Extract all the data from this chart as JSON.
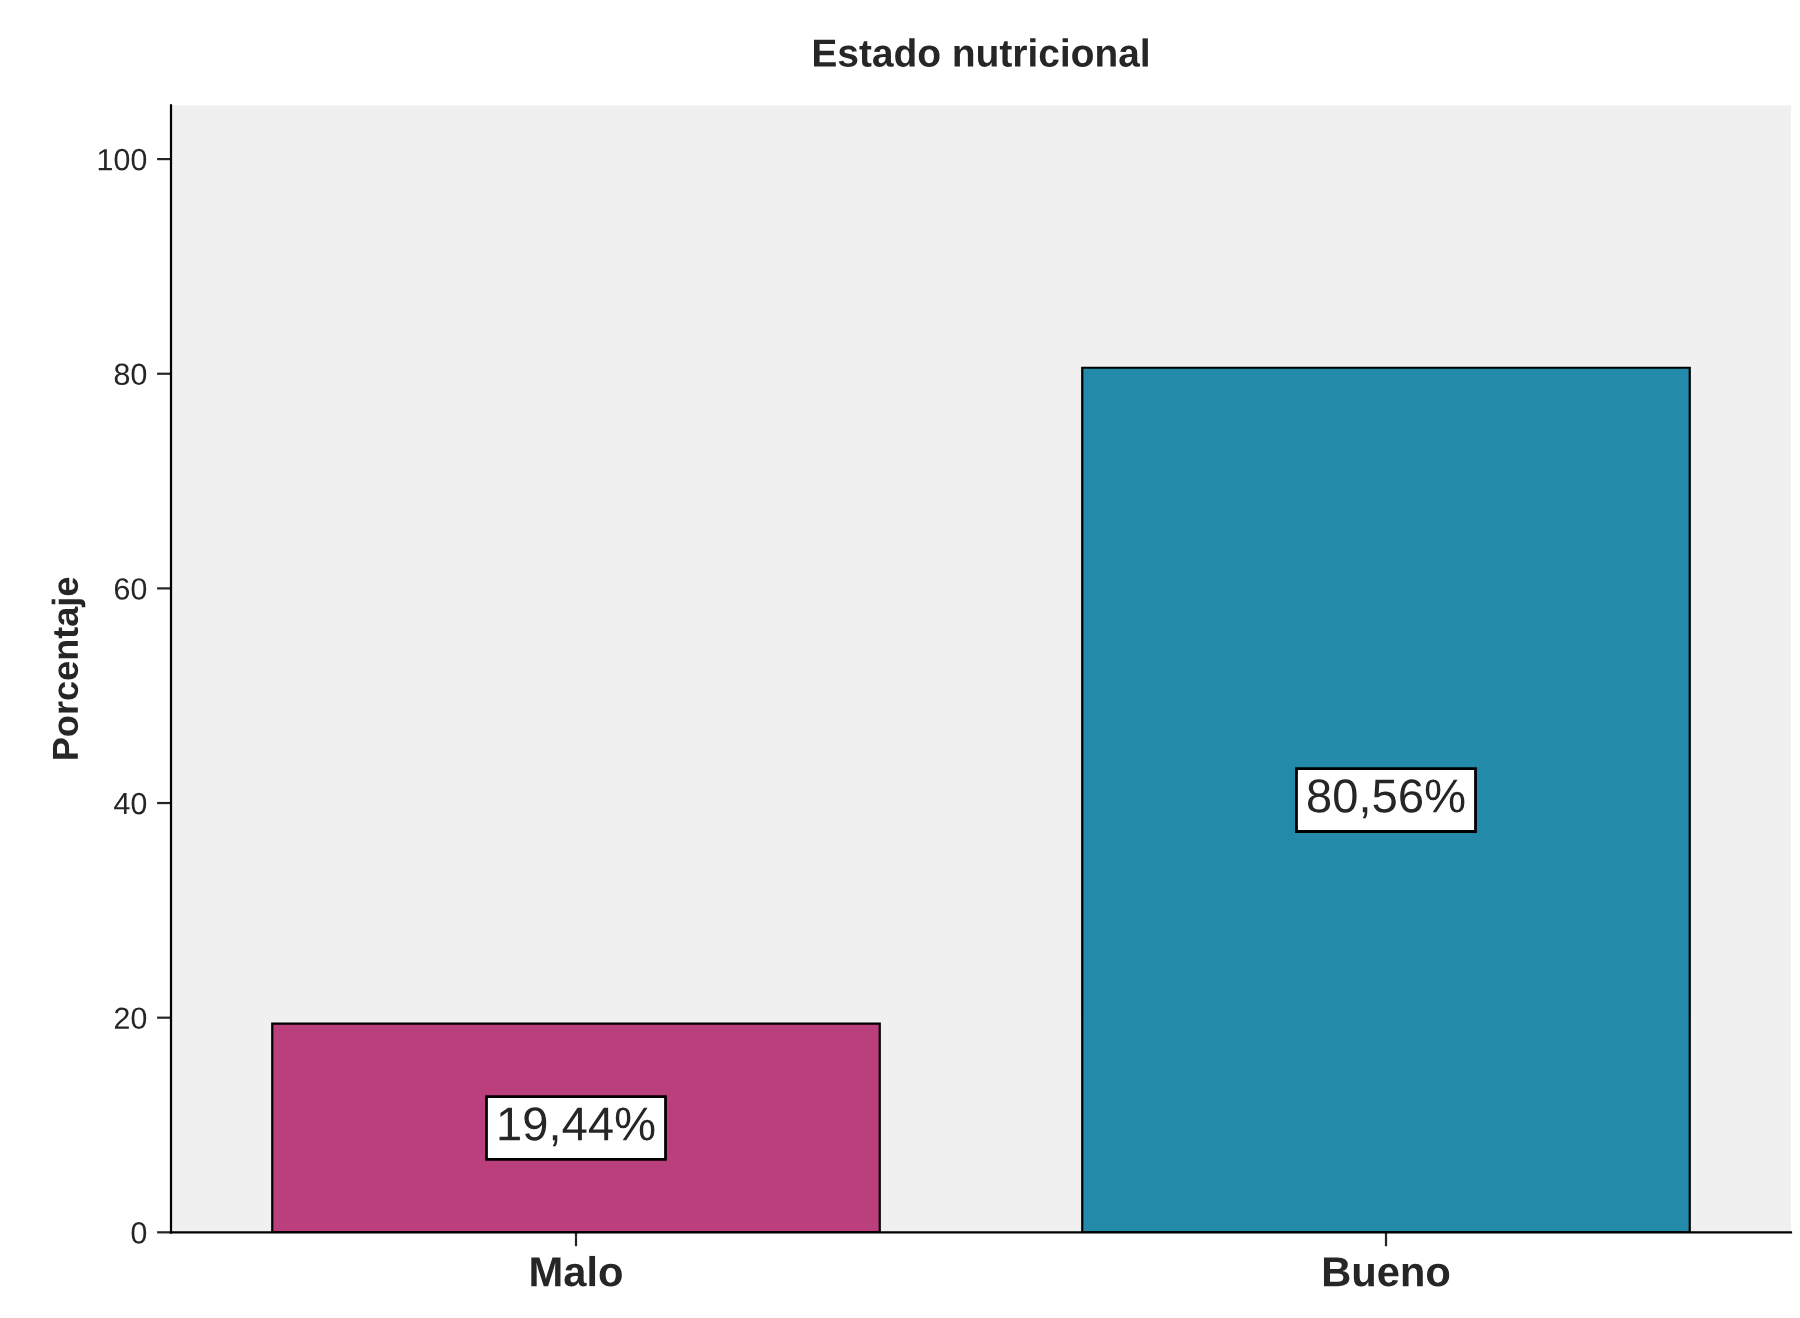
{
  "chart_data": {
    "type": "bar",
    "title": "Estado nutricional",
    "ylabel": "Porcentaje",
    "categories": [
      "Malo",
      "Bueno"
    ],
    "values": [
      19.44,
      80.56
    ],
    "colors": [
      "#bc3f7d",
      "#238aaa"
    ],
    "value_labels": [
      "19,44%",
      "80,56%"
    ],
    "ylim": [
      0,
      105
    ],
    "yticks": [
      0,
      20,
      40,
      60,
      80,
      100
    ],
    "grid": false,
    "legend": false
  }
}
